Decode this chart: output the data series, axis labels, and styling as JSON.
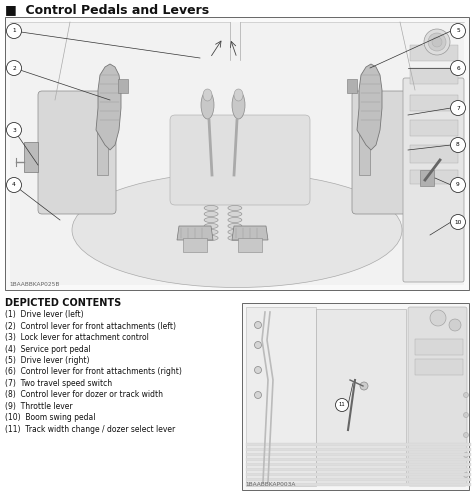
{
  "title": "Control Pedals and Levers",
  "title_marker": "■",
  "depicted_contents_title": "DEPICTED CONTENTS",
  "items": [
    "(1)  Drive lever (left)",
    "(2)  Control lever for front attachments (left)",
    "(3)  Lock lever for attachment control",
    "(4)  Service port pedal",
    "(5)  Drive lever (right)",
    "(6)  Control lever for front attachments (right)",
    "(7)  Two travel speed switch",
    "(8)  Control lever for dozer or track width",
    "(9)  Throttle lever",
    "(10)  Boom swing pedal",
    "(11)  Track width change / dozer select lever"
  ],
  "main_image_label": "1BAABBKAP025B",
  "inset_image_label": "1BAABBKAP003A",
  "bg_color": "#ffffff",
  "text_color": "#000000",
  "line_color": "#444444",
  "light_gray": "#e8e8e8",
  "mid_gray": "#cccccc",
  "dark_gray": "#888888"
}
